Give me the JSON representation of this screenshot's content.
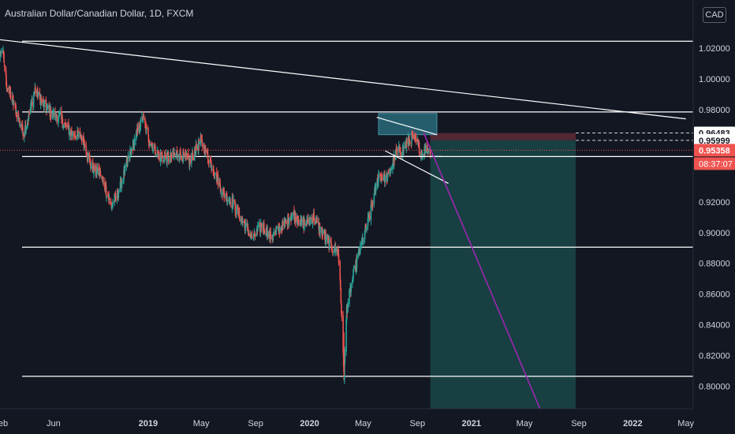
{
  "header": {
    "title": "Australian Dollar/Canadian Dollar, 1D, FXCM",
    "currency_button": "CAD"
  },
  "colors": {
    "background": "#131722",
    "up": "#26a69a",
    "down": "#ef5350",
    "axis_text": "#d1d4dc",
    "trend_line": "#ffffff",
    "target_line": "#9c27b0",
    "profit_zone": "#1b4d4d",
    "stop_zone": "#5a2a35",
    "box": "#2a6f80"
  },
  "chart_data": {
    "type": "candlestick",
    "title": "Australian Dollar/Canadian Dollar, 1D, FXCM",
    "x_ticks": [
      "Feb",
      "Jun",
      "2019",
      "May",
      "Sep",
      "2020",
      "May",
      "Sep",
      "2021",
      "May",
      "Sep",
      "2022",
      "May"
    ],
    "x_tick_dates": [
      "2018-02-01",
      "2018-06-01",
      "2019-01-01",
      "2019-05-01",
      "2019-09-01",
      "2020-01-01",
      "2020-05-01",
      "2020-09-01",
      "2021-01-01",
      "2021-05-01",
      "2021-09-01",
      "2022-01-01",
      "2022-05-01"
    ],
    "y_ticks": [
      "1.02000",
      "1.00000",
      "0.98000",
      "0.92000",
      "0.90000",
      "0.88000",
      "0.86000",
      "0.84000",
      "0.82000",
      "0.80000"
    ],
    "ylim": [
      0.7855,
      1.0375
    ],
    "price_labels": [
      {
        "text": "0.96483",
        "value": 0.96483,
        "style": "white"
      },
      {
        "text": "0.95999",
        "value": 0.95999,
        "style": "white"
      },
      {
        "text": "0.95358",
        "value": 0.95358,
        "style": "red"
      }
    ],
    "countdown": "08:37:07",
    "price_path": [
      [
        "2018-01-01",
        0.993
      ],
      [
        "2018-01-20",
        1.005
      ],
      [
        "2018-02-05",
        1.021
      ],
      [
        "2018-02-15",
        0.996
      ],
      [
        "2018-03-05",
        0.982
      ],
      [
        "2018-03-25",
        0.965
      ],
      [
        "2018-04-05",
        0.975
      ],
      [
        "2018-04-20",
        0.993
      ],
      [
        "2018-05-05",
        0.985
      ],
      [
        "2018-05-25",
        0.978
      ],
      [
        "2018-06-15",
        0.975
      ],
      [
        "2018-07-10",
        0.965
      ],
      [
        "2018-08-05",
        0.962
      ],
      [
        "2018-08-25",
        0.943
      ],
      [
        "2018-09-15",
        0.938
      ],
      [
        "2018-10-10",
        0.917
      ],
      [
        "2018-10-30",
        0.93
      ],
      [
        "2018-11-25",
        0.955
      ],
      [
        "2018-12-20",
        0.975
      ],
      [
        "2019-01-03",
        0.96
      ],
      [
        "2019-01-25",
        0.95
      ],
      [
        "2019-02-15",
        0.948
      ],
      [
        "2019-03-10",
        0.952
      ],
      [
        "2019-04-05",
        0.946
      ],
      [
        "2019-04-30",
        0.96
      ],
      [
        "2019-05-25",
        0.944
      ],
      [
        "2019-06-20",
        0.925
      ],
      [
        "2019-07-10",
        0.92
      ],
      [
        "2019-08-05",
        0.906
      ],
      [
        "2019-08-25",
        0.896
      ],
      [
        "2019-09-15",
        0.905
      ],
      [
        "2019-10-05",
        0.897
      ],
      [
        "2019-10-30",
        0.904
      ],
      [
        "2019-11-25",
        0.912
      ],
      [
        "2019-12-20",
        0.905
      ],
      [
        "2020-01-10",
        0.91
      ],
      [
        "2020-01-30",
        0.9
      ],
      [
        "2020-02-20",
        0.89
      ],
      [
        "2020-03-05",
        0.888
      ],
      [
        "2020-03-10",
        0.87
      ],
      [
        "2020-03-19",
        0.807
      ],
      [
        "2020-03-25",
        0.85
      ],
      [
        "2020-04-10",
        0.874
      ],
      [
        "2020-04-25",
        0.89
      ],
      [
        "2020-05-15",
        0.91
      ],
      [
        "2020-06-05",
        0.937
      ],
      [
        "2020-06-25",
        0.935
      ],
      [
        "2020-07-15",
        0.952
      ],
      [
        "2020-08-01",
        0.955
      ],
      [
        "2020-08-20",
        0.962
      ],
      [
        "2020-09-01",
        0.958
      ],
      [
        "2020-09-10",
        0.951
      ],
      [
        "2020-09-20",
        0.955
      ],
      [
        "2020-09-30",
        0.9536
      ]
    ],
    "horizontal_levels": [
      1.0245,
      0.9785,
      0.9495,
      0.8905,
      0.8065
    ],
    "trend_lines": [
      {
        "from": [
          "2018-01-01",
          1.0265
        ],
        "to": [
          "2022-05-01",
          0.974
        ]
      },
      {
        "from": [
          "2020-06-01",
          0.975
        ],
        "to": [
          "2020-10-15",
          0.9637
        ]
      },
      {
        "from": [
          "2020-06-20",
          0.9532
        ],
        "to": [
          "2020-11-10",
          0.932
        ]
      },
      {
        "from": [
          "2020-06-15",
          0.9495
        ],
        "to": [
          "2020-10-25",
          0.9495
        ]
      }
    ],
    "target_line": {
      "from": [
        "2020-09-15",
        0.965
      ],
      "to": [
        "2021-06-05",
        0.7855
      ]
    },
    "consolidation_box": {
      "x": [
        "2020-06-05",
        "2020-10-15"
      ],
      "y": [
        0.9637,
        0.9775
      ]
    },
    "short_position": {
      "x": [
        "2020-09-30",
        "2021-08-25"
      ],
      "entry": 0.95999,
      "stop": 0.96483,
      "target_zone_bottom": 0.7855
    }
  }
}
